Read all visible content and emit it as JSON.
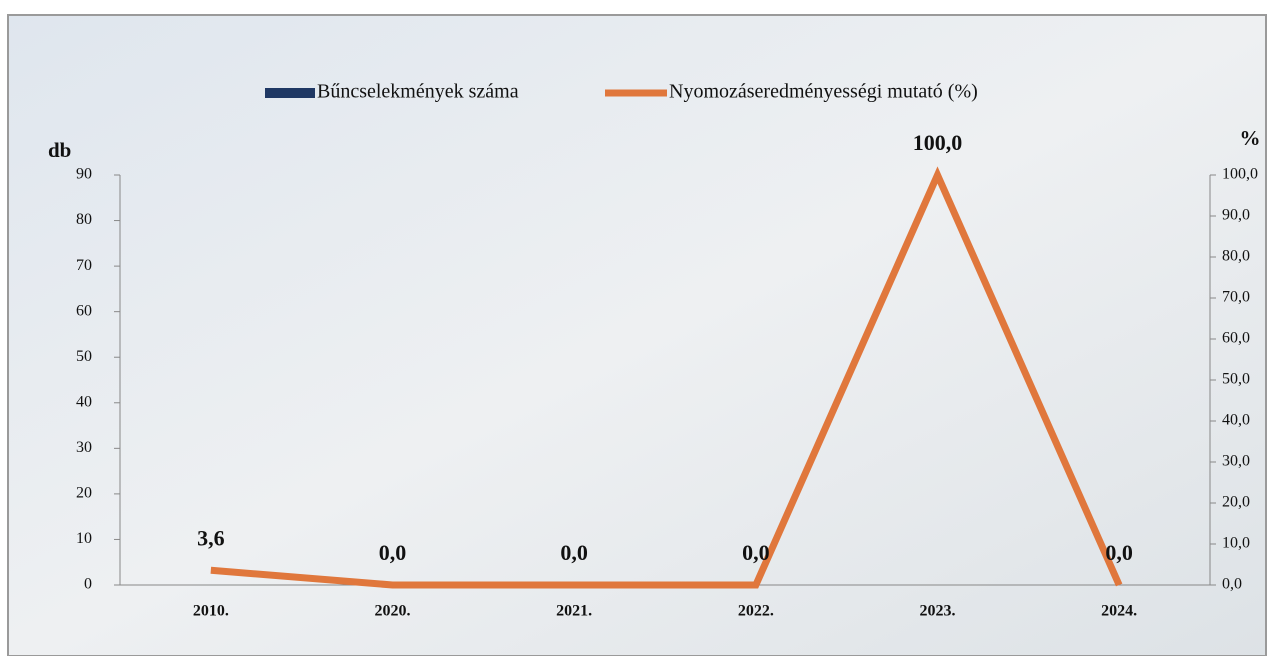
{
  "chart_data": {
    "type": "bar_line",
    "categories": [
      "2010.",
      "2020.",
      "2021.",
      "2022.",
      "2023.",
      "2024."
    ],
    "y_label": "db",
    "y2_label": "%",
    "ylim": [
      0,
      90
    ],
    "yticks": [
      0,
      10,
      20,
      30,
      40,
      50,
      60,
      70,
      80,
      90
    ],
    "y2lim": [
      0,
      100
    ],
    "y2ticks": [
      {
        "value": 0,
        "label": "0,0"
      },
      {
        "value": 10,
        "label": "10,0"
      },
      {
        "value": 20,
        "label": "20,0"
      },
      {
        "value": 30,
        "label": "30,0"
      },
      {
        "value": 40,
        "label": "40,0"
      },
      {
        "value": 50,
        "label": "50,0"
      },
      {
        "value": 60,
        "label": "60,0"
      },
      {
        "value": 70,
        "label": "70,0"
      },
      {
        "value": 80,
        "label": "80,0"
      },
      {
        "value": 90,
        "label": "90,0"
      },
      {
        "value": 100,
        "label": "100,0"
      }
    ],
    "series": [
      {
        "name": "Bűncselekmények száma",
        "type": "bar",
        "color": "#1f3864",
        "values": [
          0,
          0,
          0,
          0,
          0,
          0
        ]
      },
      {
        "name": "Nyomozáseredményességi mutató (%)",
        "type": "line",
        "axis": "y2",
        "color": "#e0773c",
        "values": [
          3.6,
          0,
          0,
          0,
          100,
          0
        ],
        "value_labels": [
          "3,6",
          "0,0",
          "0,0",
          "0,0",
          "100,0",
          "0,0"
        ]
      }
    ],
    "legend": "top"
  }
}
